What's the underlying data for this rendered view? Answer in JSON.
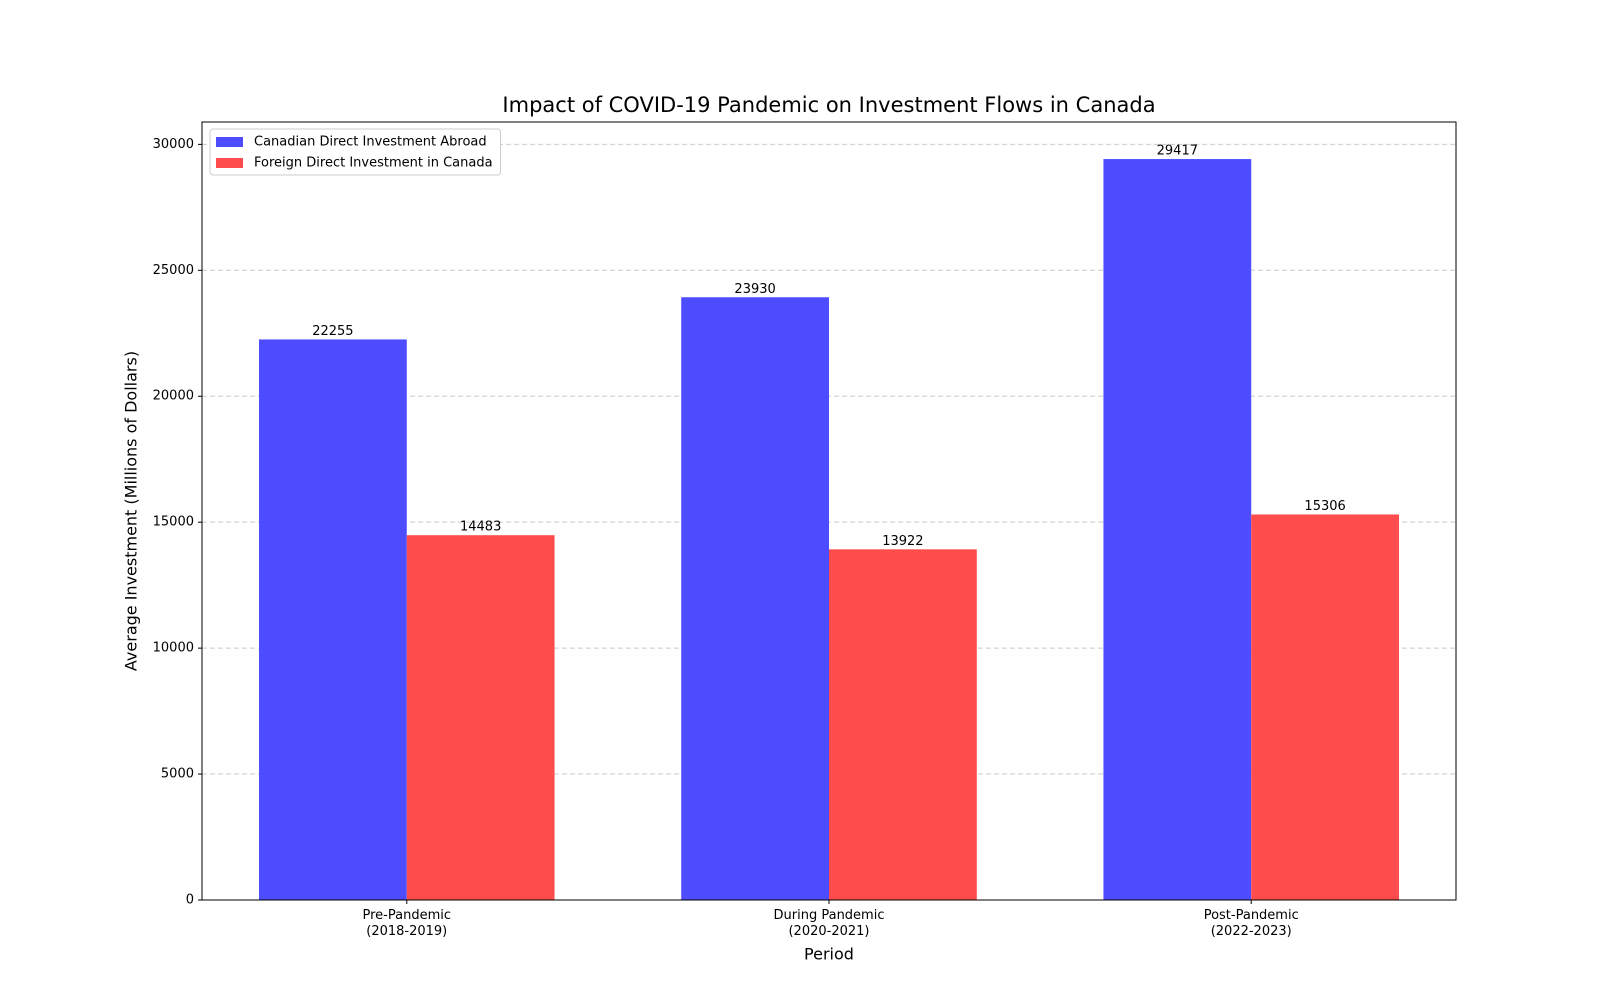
{
  "chart_data": {
    "type": "bar",
    "title": "Impact of COVID-19 Pandemic on Investment Flows in Canada",
    "x_label": "Period",
    "y_label": "Average Investment (Millions of Dollars)",
    "categories": [
      "Pre-Pandemic\n(2018-2019)",
      "During Pandemic\n(2020-2021)",
      "Post-Pandemic\n(2022-2023)"
    ],
    "series": [
      {
        "name": "Canadian Direct Investment Abroad",
        "color": "#4d4dff",
        "values": [
          22255,
          23930,
          29417
        ]
      },
      {
        "name": "Foreign Direct Investment in Canada",
        "color": "#ff4d4d",
        "values": [
          14483,
          13922,
          15306
        ]
      }
    ],
    "ylim": [
      0,
      30888
    ],
    "yticks": [
      0,
      5000,
      10000,
      15000,
      20000,
      25000,
      30000
    ],
    "grid": true,
    "legend": "upper-left"
  }
}
